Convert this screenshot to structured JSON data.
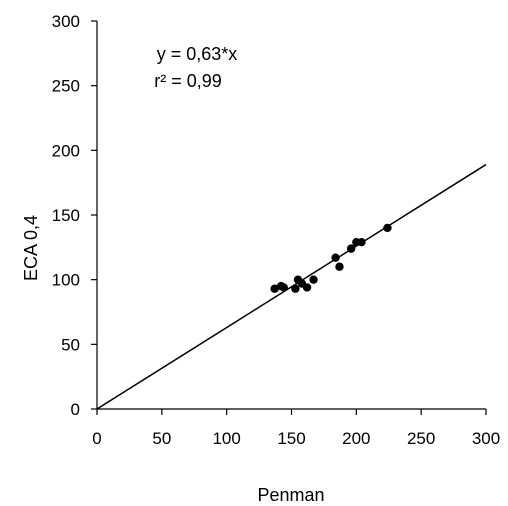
{
  "chart_data": {
    "type": "scatter",
    "xlabel": "Penman",
    "ylabel": "ECA 0,4",
    "xlim": [
      0,
      300
    ],
    "ylim": [
      0,
      300
    ],
    "x_ticks": [
      0,
      50,
      100,
      150,
      200,
      250,
      300
    ],
    "y_ticks": [
      0,
      50,
      100,
      150,
      200,
      250,
      300
    ],
    "grid": false,
    "annotations": [
      "y = 0,63*x",
      "r² = 0,99"
    ],
    "points": [
      {
        "x": 137,
        "y": 93
      },
      {
        "x": 142,
        "y": 95
      },
      {
        "x": 144,
        "y": 94
      },
      {
        "x": 153,
        "y": 93
      },
      {
        "x": 155,
        "y": 100
      },
      {
        "x": 158,
        "y": 97
      },
      {
        "x": 162,
        "y": 94
      },
      {
        "x": 167,
        "y": 100
      },
      {
        "x": 184,
        "y": 117
      },
      {
        "x": 187,
        "y": 110
      },
      {
        "x": 196,
        "y": 124
      },
      {
        "x": 200,
        "y": 129
      },
      {
        "x": 204,
        "y": 129
      },
      {
        "x": 224,
        "y": 140
      }
    ],
    "fit_line": {
      "slope": 0.63,
      "x_range": [
        0,
        300
      ]
    },
    "colors": {
      "points": "#000000",
      "line": "#000000",
      "axes": "#000000"
    }
  }
}
